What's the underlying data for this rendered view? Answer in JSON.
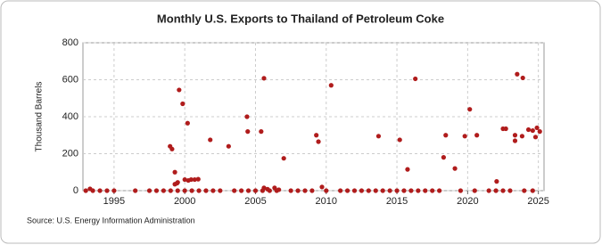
{
  "chart_data": {
    "type": "scatter",
    "title": "Monthly U.S. Exports to Thailand of Petroleum Coke",
    "y_label": "Thousand Barrels",
    "source": "Source: U.S. Energy Information Administration",
    "color": "#b01c1c",
    "xlim": [
      1992.8,
      2025.4
    ],
    "xticks": [
      1995,
      2000,
      2005,
      2010,
      2015,
      2020,
      2025
    ],
    "ylim": [
      0,
      800
    ],
    "yticks": [
      0,
      200,
      400,
      600,
      800
    ],
    "grid": true,
    "x": [
      1993.3,
      1998.96,
      1999.1,
      1999.3,
      1999.3,
      1999.45,
      1999.5,
      1999.6,
      1999.85,
      2000.2,
      2000.0,
      2000.25,
      2000.45,
      2000.7,
      2000.95,
      2001.8,
      2003.1,
      2004.4,
      2004.45,
      2005.4,
      2005.6,
      2005.6,
      2005.85,
      2006.35,
      2006.65,
      2007.0,
      2009.3,
      2009.45,
      2009.7,
      2010.35,
      2013.7,
      2015.2,
      2015.75,
      2016.3,
      2018.3,
      2018.45,
      2019.1,
      2019.8,
      2020.15,
      2020.65,
      2022.05,
      2022.5,
      2022.7,
      2023.35,
      2023.35,
      2023.5,
      2023.9,
      2023.85,
      2024.3,
      2024.6,
      2024.8,
      2024.9,
      2025.1,
      1993.0,
      1993.5,
      1994.0,
      1994.5,
      1995.0,
      1996.5,
      1997.5,
      1998.0,
      1998.5,
      1999.0,
      1999.5,
      2000.0,
      2000.5,
      2001.0,
      2001.5,
      2002.0,
      2002.5,
      2003.5,
      2004.0,
      2004.5,
      2005.0,
      2005.5,
      2006.0,
      2006.5,
      2007.5,
      2008.0,
      2008.5,
      2009.0,
      2010.0,
      2011.0,
      2011.5,
      2012.0,
      2012.5,
      2013.0,
      2013.5,
      2014.0,
      2014.5,
      2015.0,
      2015.5,
      2016.0,
      2016.5,
      2017.0,
      2017.5,
      2018.0,
      2019.5,
      2020.5,
      2021.5,
      2022.0,
      2022.5,
      2023.0,
      2024.0,
      2024.6
    ],
    "values": [
      10,
      240,
      225,
      100,
      35,
      40,
      45,
      545,
      470,
      365,
      60,
      55,
      60,
      60,
      62,
      275,
      240,
      400,
      320,
      320,
      608,
      15,
      8,
      15,
      5,
      175,
      300,
      265,
      20,
      570,
      295,
      275,
      115,
      605,
      180,
      300,
      120,
      295,
      440,
      300,
      50,
      335,
      335,
      300,
      270,
      630,
      610,
      295,
      330,
      325,
      290,
      340,
      320,
      0,
      0,
      0,
      0,
      0,
      0,
      0,
      0,
      0,
      0,
      0,
      0,
      0,
      0,
      0,
      0,
      0,
      0,
      0,
      0,
      0,
      0,
      0,
      0,
      0,
      0,
      0,
      0,
      0,
      0,
      0,
      0,
      0,
      0,
      0,
      0,
      0,
      0,
      0,
      0,
      0,
      0,
      0,
      0,
      0,
      0,
      0,
      0,
      0,
      0,
      0,
      0
    ]
  }
}
